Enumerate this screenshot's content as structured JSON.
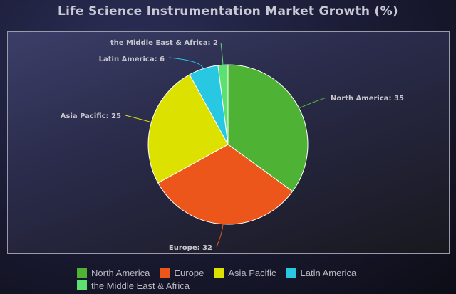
{
  "chart_data": {
    "type": "pie",
    "title": "Life Science Instrumentation Market Growth (%)",
    "categories": [
      "North America",
      "Europe",
      "Asia Pacific",
      "Latin America",
      "the Middle East & Africa"
    ],
    "values": [
      35,
      32,
      25,
      6,
      2
    ],
    "colors": [
      "#4eb334",
      "#ec561b",
      "#dde100",
      "#28c8e2",
      "#5ee070"
    ],
    "data_labels": [
      "North America: 35",
      "Europe: 32",
      "Asia Pacific: 25",
      "Latin America: 6",
      "the Middle East & Africa: 2"
    ],
    "legend_position": "bottom"
  }
}
